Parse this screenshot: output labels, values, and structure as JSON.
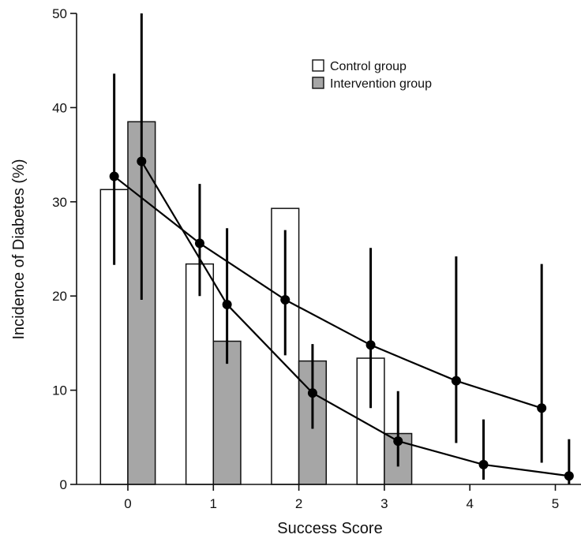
{
  "chart_data": {
    "type": "bar",
    "title": "",
    "xlabel": "Success Score",
    "ylabel": "Incidence of Diabetes (%)",
    "xlim": [
      -0.6,
      5.3
    ],
    "ylim": [
      0,
      50
    ],
    "x_ticks": [
      0,
      1,
      2,
      3,
      4,
      5
    ],
    "y_ticks": [
      0,
      10,
      20,
      30,
      40,
      50
    ],
    "grid": false,
    "legend_position": "top-right",
    "bar_series": [
      {
        "name": "Control group",
        "color": "#ffffff",
        "x": [
          0,
          1,
          2,
          3
        ],
        "values": [
          31.3,
          23.4,
          29.3,
          13.4
        ]
      },
      {
        "name": "Intervention group",
        "color": "#a6a6a6",
        "x": [
          0,
          1,
          2,
          3
        ],
        "values": [
          38.5,
          15.2,
          13.1,
          5.4
        ]
      }
    ],
    "line_series": [
      {
        "x": [
          -0.16,
          0.84,
          1.84,
          2.84,
          3.84,
          4.84
        ],
        "y": [
          32.7,
          25.6,
          19.6,
          14.8,
          11.0,
          8.1
        ],
        "error_low": [
          23.3,
          20.0,
          13.7,
          8.1,
          4.4,
          2.3
        ],
        "error_high": [
          43.6,
          31.9,
          27.0,
          25.1,
          24.2,
          23.4
        ]
      },
      {
        "x": [
          0.16,
          1.16,
          2.16,
          3.16,
          4.16,
          5.16
        ],
        "y": [
          34.3,
          19.1,
          9.7,
          4.6,
          2.1,
          0.9
        ],
        "error_low": [
          19.6,
          12.8,
          5.9,
          1.9,
          0.5,
          0.0
        ],
        "error_high": [
          50.0,
          27.2,
          14.9,
          9.9,
          6.9,
          4.8
        ]
      }
    ]
  }
}
